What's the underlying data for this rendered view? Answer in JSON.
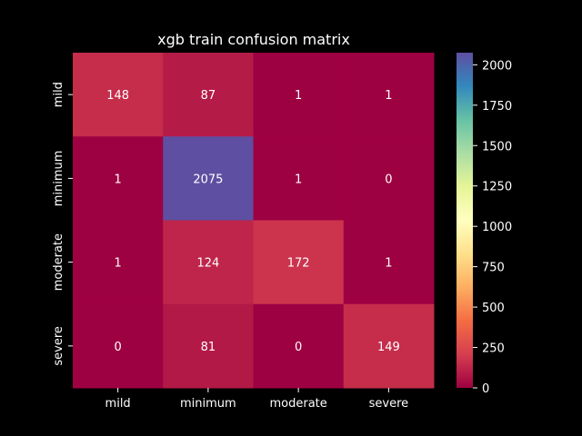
{
  "chart_data": {
    "type": "heatmap",
    "title": "xgb train confusion matrix",
    "xlabel": "",
    "ylabel": "",
    "x_categories": [
      "mild",
      "minimum",
      "moderate",
      "severe"
    ],
    "y_categories": [
      "mild",
      "minimum",
      "moderate",
      "severe"
    ],
    "values": [
      [
        148,
        87,
        1,
        1
      ],
      [
        1,
        2075,
        1,
        0
      ],
      [
        1,
        124,
        172,
        1
      ],
      [
        0,
        81,
        0,
        149
      ]
    ],
    "colormap": "Spectral",
    "colorbar": {
      "range": [
        0,
        2075
      ],
      "ticks": [
        0,
        250,
        500,
        750,
        1000,
        1250,
        1500,
        1750,
        2000
      ]
    },
    "annotations_color": "#ffffff",
    "background_color": "#000000"
  }
}
